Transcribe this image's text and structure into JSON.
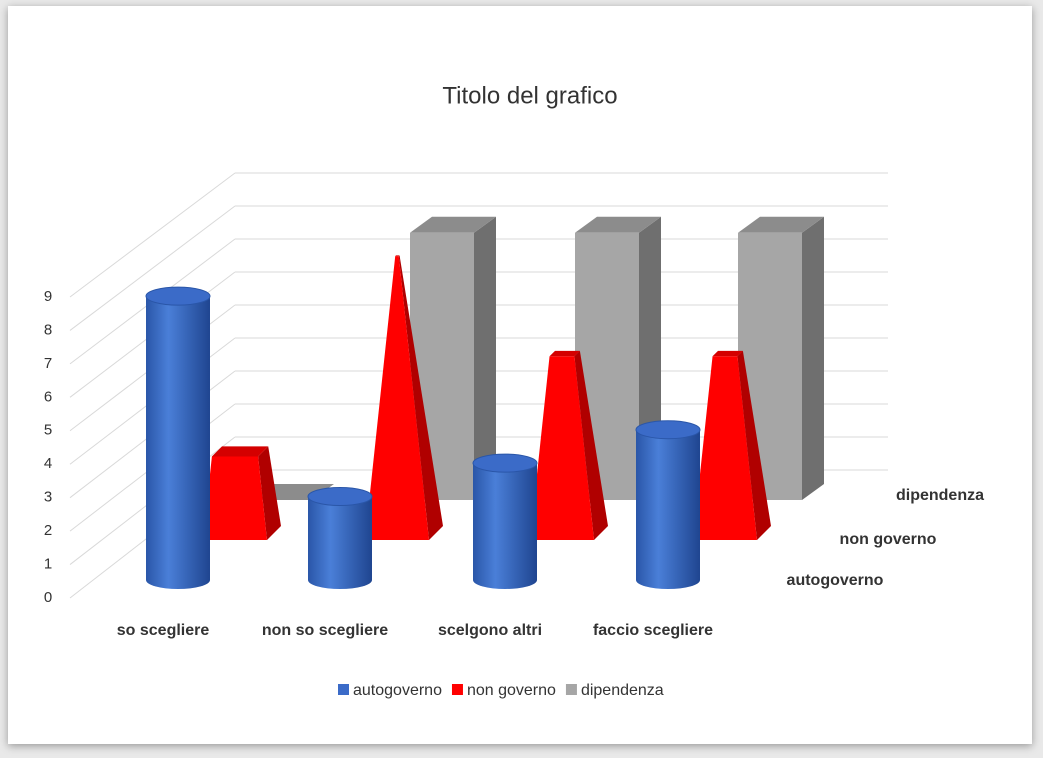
{
  "chart_data": {
    "type": "bar3d",
    "title": "Titolo del grafico",
    "categories": [
      "so scegliere",
      "non so scegliere",
      "scelgono altri",
      "faccio scegliere"
    ],
    "series": [
      {
        "name": "autogoverno",
        "color": "#3b6bc8",
        "values": [
          8.5,
          2.5,
          3.5,
          4.5
        ]
      },
      {
        "name": "non governo",
        "color": "#ff0000",
        "values": [
          2.5,
          8.5,
          5.5,
          5.5
        ]
      },
      {
        "name": "dipendenza",
        "color": "#a6a6a6",
        "values": [
          0,
          8,
          8,
          8
        ]
      }
    ],
    "ylim": [
      0,
      9
    ],
    "yticks": [
      0,
      1,
      2,
      3,
      4,
      5,
      6,
      7,
      8,
      9
    ],
    "grid": true,
    "legend": "bottom"
  }
}
